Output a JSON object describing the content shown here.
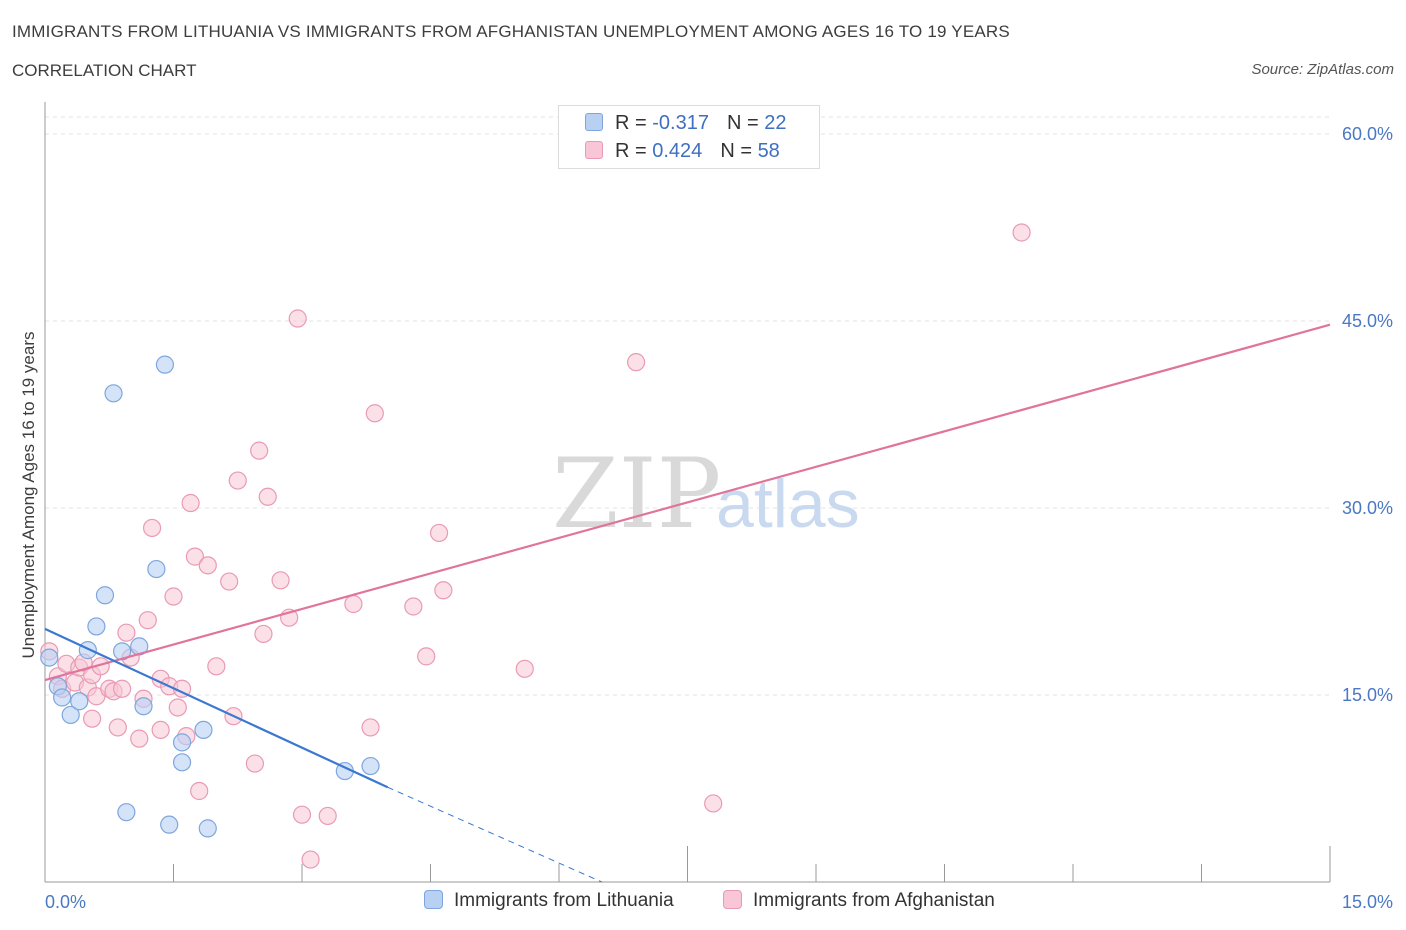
{
  "header": {
    "title": "IMMIGRANTS FROM LITHUANIA VS IMMIGRANTS FROM AFGHANISTAN UNEMPLOYMENT AMONG AGES 16 TO 19 YEARS",
    "subtitle": "CORRELATION CHART",
    "source": "Source: ZipAtlas.com"
  },
  "watermark": {
    "zip": "ZIP",
    "atlas": "atlas"
  },
  "legend": {
    "lithuania": {
      "r_label": "R = ",
      "r_value": "-0.317",
      "n_label": "N = ",
      "n_value": "22"
    },
    "afghanistan": {
      "r_label": "R = ",
      "r_value": "0.424",
      "n_label": "N = ",
      "n_value": "58"
    }
  },
  "bottom_legend": {
    "lithuania": "Immigrants from Lithuania",
    "afghanistan": "Immigrants from Afghanistan"
  },
  "chart_data": {
    "type": "scatter",
    "title": "IMMIGRANTS FROM LITHUANIA VS IMMIGRANTS FROM AFGHANISTAN UNEMPLOYMENT AMONG AGES 16 TO 19 YEARS",
    "xlabel": "",
    "ylabel": "Unemployment Among Ages 16 to 19 years",
    "xlim": [
      0,
      15
    ],
    "ylim": [
      0,
      60
    ],
    "x_tick_labels": [
      "0.0%",
      "15.0%"
    ],
    "y_ticks": [
      15,
      30,
      45,
      60
    ],
    "y_tick_labels": [
      "15.0%",
      "30.0%",
      "45.0%",
      "60.0%"
    ],
    "grid": true,
    "colors": {
      "lithuania_fill": "#b8d1f3",
      "lithuania_stroke": "#7ea6dd",
      "lithuania_line": "#3a78d1",
      "afghanistan_fill": "#f8c6d6",
      "afghanistan_stroke": "#e99ab4",
      "afghanistan_line": "#e0749a"
    },
    "series": [
      {
        "name": "Immigrants from Lithuania",
        "color": "#b8d1f3",
        "points": [
          [
            0.05,
            18.0
          ],
          [
            0.15,
            15.7
          ],
          [
            0.2,
            14.8
          ],
          [
            0.3,
            13.4
          ],
          [
            0.4,
            14.5
          ],
          [
            0.5,
            18.6
          ],
          [
            0.6,
            20.5
          ],
          [
            0.7,
            23.0
          ],
          [
            0.8,
            39.2
          ],
          [
            0.95,
            5.6
          ],
          [
            0.9,
            18.5
          ],
          [
            1.1,
            18.9
          ],
          [
            1.15,
            14.1
          ],
          [
            1.3,
            25.1
          ],
          [
            1.4,
            41.5
          ],
          [
            1.45,
            4.6
          ],
          [
            1.6,
            11.2
          ],
          [
            1.6,
            9.6
          ],
          [
            1.85,
            12.2
          ],
          [
            1.9,
            4.3
          ],
          [
            3.5,
            8.9
          ],
          [
            3.8,
            9.3
          ]
        ],
        "trend": {
          "x": [
            0.0,
            4.0
          ],
          "y": [
            20.3,
            7.6
          ],
          "dashed_to": [
            6.5,
            0.0
          ]
        }
      },
      {
        "name": "Immigrants from Afghanistan",
        "color": "#f8c6d6",
        "points": [
          [
            0.05,
            18.5
          ],
          [
            0.15,
            16.5
          ],
          [
            0.2,
            15.5
          ],
          [
            0.25,
            17.5
          ],
          [
            0.35,
            16.0
          ],
          [
            0.4,
            17.2
          ],
          [
            0.45,
            17.6
          ],
          [
            0.5,
            15.6
          ],
          [
            0.55,
            16.6
          ],
          [
            0.55,
            13.1
          ],
          [
            0.6,
            14.9
          ],
          [
            0.65,
            17.3
          ],
          [
            0.75,
            15.5
          ],
          [
            0.8,
            15.3
          ],
          [
            0.85,
            12.4
          ],
          [
            0.9,
            15.5
          ],
          [
            0.95,
            20.0
          ],
          [
            1.0,
            18.0
          ],
          [
            1.1,
            11.5
          ],
          [
            1.15,
            14.7
          ],
          [
            1.2,
            21.0
          ],
          [
            1.25,
            28.4
          ],
          [
            1.35,
            12.2
          ],
          [
            1.35,
            16.3
          ],
          [
            1.45,
            15.7
          ],
          [
            1.5,
            22.9
          ],
          [
            1.55,
            14.0
          ],
          [
            1.6,
            15.5
          ],
          [
            1.65,
            11.7
          ],
          [
            1.7,
            30.4
          ],
          [
            1.75,
            26.1
          ],
          [
            1.8,
            7.3
          ],
          [
            1.9,
            25.4
          ],
          [
            2.0,
            17.3
          ],
          [
            2.15,
            24.1
          ],
          [
            2.2,
            13.3
          ],
          [
            2.25,
            32.2
          ],
          [
            2.45,
            9.5
          ],
          [
            2.5,
            34.6
          ],
          [
            2.55,
            19.9
          ],
          [
            2.6,
            30.9
          ],
          [
            2.75,
            24.2
          ],
          [
            2.85,
            21.2
          ],
          [
            2.95,
            45.2
          ],
          [
            3.0,
            5.4
          ],
          [
            3.1,
            1.8
          ],
          [
            3.3,
            5.3
          ],
          [
            3.6,
            22.3
          ],
          [
            3.8,
            12.4
          ],
          [
            3.85,
            37.6
          ],
          [
            4.3,
            22.1
          ],
          [
            4.45,
            18.1
          ],
          [
            4.6,
            28.0
          ],
          [
            4.65,
            23.4
          ],
          [
            5.6,
            17.1
          ],
          [
            6.9,
            41.7
          ],
          [
            7.8,
            6.3
          ],
          [
            11.4,
            52.1
          ]
        ],
        "trend": {
          "x": [
            0.0,
            15.0
          ],
          "y": [
            16.2,
            44.7
          ]
        }
      }
    ]
  }
}
